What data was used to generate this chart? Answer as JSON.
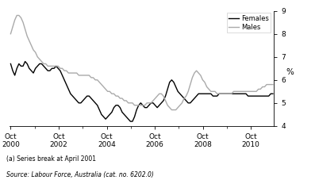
{
  "ylabel": "%",
  "ylim": [
    4,
    9
  ],
  "yticks": [
    4,
    5,
    6,
    7,
    8,
    9
  ],
  "footnote_a": "(a) Series break at April 2001",
  "footnote_source": "Source: Labour Force, Australia (cat. no. 6202.0)",
  "legend_females": "Females",
  "legend_males": "Males",
  "females_color": "#000000",
  "males_color": "#aaaaaa",
  "line_width": 1.0,
  "females_data": [
    6.7,
    6.4,
    6.2,
    6.5,
    6.7,
    6.6,
    6.6,
    6.8,
    6.7,
    6.5,
    6.4,
    6.3,
    6.5,
    6.6,
    6.7,
    6.7,
    6.6,
    6.5,
    6.4,
    6.4,
    6.5,
    6.5,
    6.6,
    6.5,
    6.4,
    6.2,
    6.0,
    5.8,
    5.6,
    5.4,
    5.3,
    5.2,
    5.1,
    5.0,
    5.0,
    5.1,
    5.2,
    5.3,
    5.3,
    5.2,
    5.1,
    5.0,
    4.9,
    4.7,
    4.5,
    4.4,
    4.3,
    4.4,
    4.5,
    4.6,
    4.8,
    4.9,
    4.9,
    4.8,
    4.6,
    4.5,
    4.4,
    4.3,
    4.2,
    4.2,
    4.4,
    4.7,
    4.9,
    5.0,
    4.9,
    4.8,
    4.8,
    4.9,
    5.0,
    5.0,
    4.9,
    4.8,
    4.9,
    5.0,
    5.1,
    5.3,
    5.6,
    5.9,
    6.0,
    5.9,
    5.7,
    5.5,
    5.4,
    5.3,
    5.2,
    5.1,
    5.0,
    5.0,
    5.1,
    5.2,
    5.3,
    5.4,
    5.4,
    5.4,
    5.4,
    5.4,
    5.4,
    5.4,
    5.3,
    5.3,
    5.3,
    5.4,
    5.4,
    5.4,
    5.4,
    5.4,
    5.4,
    5.4,
    5.4,
    5.4,
    5.4,
    5.4,
    5.4,
    5.4,
    5.4,
    5.3,
    5.3,
    5.3,
    5.3,
    5.3,
    5.3,
    5.3,
    5.3,
    5.3,
    5.3,
    5.3,
    5.4,
    5.4
  ],
  "males_data": [
    8.0,
    8.3,
    8.6,
    8.8,
    8.8,
    8.7,
    8.5,
    8.2,
    7.9,
    7.7,
    7.5,
    7.3,
    7.2,
    7.0,
    6.9,
    6.8,
    6.7,
    6.7,
    6.6,
    6.6,
    6.6,
    6.6,
    6.6,
    6.6,
    6.5,
    6.5,
    6.4,
    6.4,
    6.3,
    6.3,
    6.3,
    6.3,
    6.3,
    6.2,
    6.2,
    6.2,
    6.2,
    6.2,
    6.2,
    6.1,
    6.1,
    6.0,
    6.0,
    5.9,
    5.8,
    5.7,
    5.6,
    5.5,
    5.5,
    5.4,
    5.4,
    5.3,
    5.3,
    5.2,
    5.2,
    5.1,
    5.1,
    5.0,
    5.0,
    5.0,
    4.9,
    4.9,
    4.9,
    4.9,
    4.9,
    4.9,
    5.0,
    5.0,
    5.0,
    5.1,
    5.2,
    5.3,
    5.4,
    5.4,
    5.3,
    5.1,
    4.9,
    4.8,
    4.7,
    4.7,
    4.7,
    4.8,
    4.9,
    5.0,
    5.2,
    5.3,
    5.5,
    5.8,
    6.1,
    6.3,
    6.4,
    6.3,
    6.2,
    6.0,
    5.9,
    5.7,
    5.6,
    5.5,
    5.5,
    5.5,
    5.4,
    5.4,
    5.4,
    5.4,
    5.4,
    5.4,
    5.4,
    5.4,
    5.5,
    5.5,
    5.5,
    5.5,
    5.5,
    5.5,
    5.5,
    5.5,
    5.5,
    5.5,
    5.5,
    5.5,
    5.6,
    5.6,
    5.7,
    5.7,
    5.8,
    5.8,
    5.8,
    5.8
  ],
  "n_points": 128,
  "x_start_year": 2000.0,
  "x_end_year": 2010.917,
  "xtick_positions": [
    2000.0,
    2001.0,
    2002.0,
    2003.0,
    2004.0,
    2005.0,
    2006.0,
    2007.0,
    2008.0,
    2009.0,
    2010.0
  ],
  "xtick_major": [
    2000.0,
    2002.0,
    2004.0,
    2006.0,
    2008.0,
    2010.0
  ],
  "xtick_labels": [
    "Oct\n2000",
    "Oct\n2002",
    "Oct\n2004",
    "Oct\n2006",
    "Oct\n2008",
    "Oct\n2010"
  ]
}
